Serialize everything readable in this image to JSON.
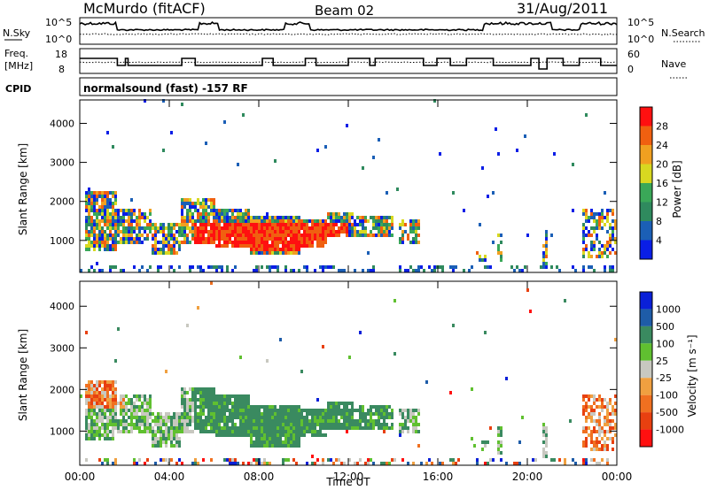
{
  "header": {
    "station": "McMurdo (fitACF)",
    "beam": "Beam 02",
    "date": "31/Aug/2011"
  },
  "top_panels": {
    "nsky_label": "N.Sky",
    "nsky_ticks": [
      "10^5",
      "10^0"
    ],
    "nsearch_label": "N.Search",
    "nsearch_ticks": [
      "10^5",
      "10^0"
    ],
    "freq_label_1": "Freq.",
    "freq_label_2": "[MHz]",
    "freq_ticks": [
      "18",
      "8"
    ],
    "nave_label": "Nave",
    "nave_ticks": [
      "60",
      "0"
    ],
    "cpid_label": "CPID",
    "cpid_text": "normalsound (fast) -157 RF"
  },
  "colors": {
    "power_scale": [
      "#0a1ee6",
      "#1b5fb6",
      "#2f8a5e",
      "#3aa858",
      "#d8d820",
      "#f0a020",
      "#f06010",
      "#ff1010"
    ],
    "velocity_scale": [
      "#ff1010",
      "#e84010",
      "#f07020",
      "#f0a040",
      "#c8c8c0",
      "#60c030",
      "#3a8a60",
      "#1e5ca8",
      "#0a20d8"
    ]
  },
  "chart_data": [
    {
      "type": "heatmap",
      "name": "power",
      "ylabel": "Slant Range [km]",
      "yticks": [
        1000,
        2000,
        3000,
        4000
      ],
      "xticks": [
        "00:00",
        "04:00",
        "08:00",
        "12:00",
        "16:00",
        "20:00",
        "00:00"
      ],
      "colorbar_label": "Power [dB]",
      "colorbar_ticks": [
        4,
        8,
        12,
        16,
        20,
        24,
        28
      ],
      "ylim": [
        180,
        4600
      ],
      "xlim_hours": [
        0,
        24
      ]
    },
    {
      "type": "heatmap",
      "name": "velocity",
      "ylabel": "Slant Range [km]",
      "yticks": [
        1000,
        2000,
        3000,
        4000
      ],
      "xticks": [
        "00:00",
        "04:00",
        "08:00",
        "12:00",
        "16:00",
        "20:00",
        "00:00"
      ],
      "xlabel": "Time UT",
      "colorbar_label": "Velocity [m s⁻¹]",
      "colorbar_ticks": [
        1000,
        500,
        100,
        25,
        -25,
        -100,
        -500,
        -1000
      ],
      "ylim": [
        180,
        4600
      ],
      "xlim_hours": [
        0,
        24
      ]
    }
  ]
}
